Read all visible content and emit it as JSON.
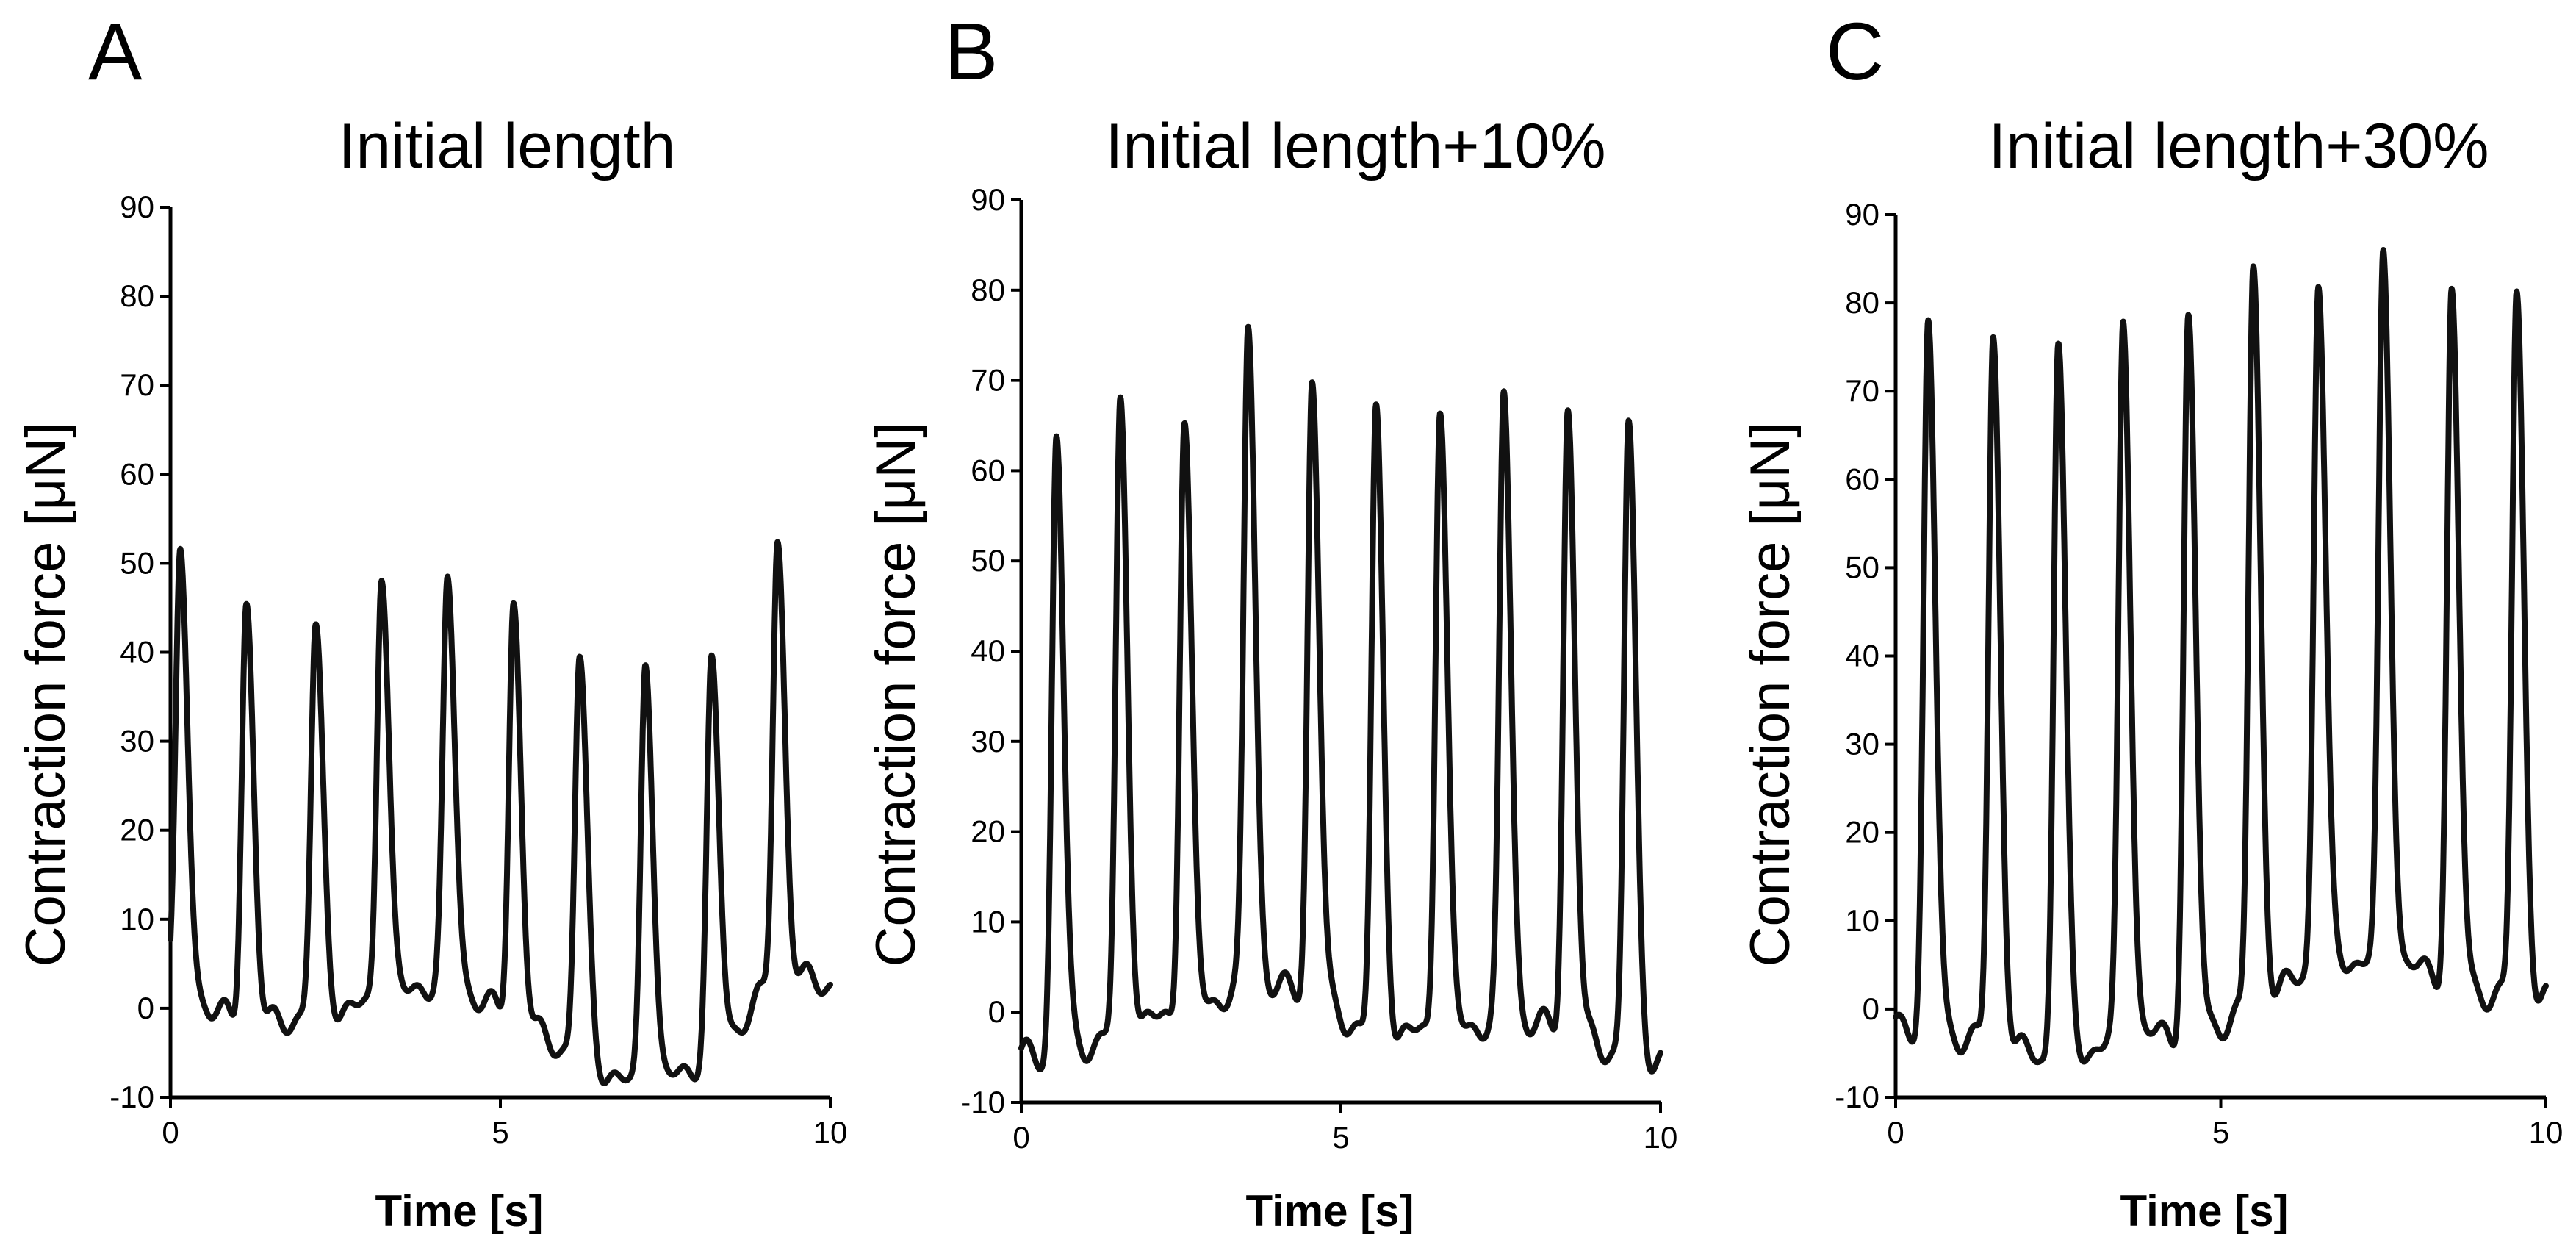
{
  "figure": {
    "panels": [
      "A",
      "B",
      "C"
    ]
  },
  "chart_data": [
    {
      "panel": "A",
      "type": "line",
      "title": "Initial length",
      "xlabel": "Time [s]",
      "ylabel": "Contraction force [μN]",
      "xlim": [
        0,
        10
      ],
      "ylim": [
        -10,
        90
      ],
      "xticks": [
        0,
        5,
        10
      ],
      "yticks": [
        -10,
        0,
        10,
        20,
        30,
        40,
        50,
        60,
        70,
        80,
        90
      ],
      "beat_times": [
        0.15,
        1.15,
        2.2,
        3.2,
        4.2,
        5.2,
        6.2,
        7.2,
        8.2,
        9.2
      ],
      "peaks": [
        50,
        46,
        42,
        50,
        47,
        46,
        39,
        40,
        38,
        53
      ],
      "baseline": [
        3,
        -3,
        0,
        0,
        4,
        -2,
        -5,
        -10,
        -5,
        3
      ],
      "series": [
        {
          "name": "Contraction force",
          "color": "#111111"
        }
      ]
    },
    {
      "panel": "B",
      "type": "line",
      "title": "Initial length+10%",
      "xlabel": "Time [s]",
      "ylabel": "Contraction force [μN]",
      "xlim": [
        0,
        10
      ],
      "ylim": [
        -10,
        90
      ],
      "xticks": [
        0,
        5,
        10
      ],
      "yticks": [
        -10,
        0,
        10,
        20,
        30,
        40,
        50,
        60,
        70,
        80,
        90
      ],
      "beat_times": [
        0.55,
        1.55,
        2.55,
        3.55,
        4.55,
        5.55,
        6.55,
        7.55,
        8.55,
        9.5
      ],
      "peaks": [
        64,
        67,
        66,
        76,
        70,
        66,
        68,
        68,
        67,
        65
      ],
      "baseline": [
        -5,
        -2,
        0,
        3,
        2,
        -3,
        -2,
        -1,
        -2,
        -5
      ],
      "series": [
        {
          "name": "Contraction force",
          "color": "#111111"
        }
      ]
    },
    {
      "panel": "C",
      "type": "line",
      "title": "Initial length+30%",
      "xlabel": "Time [s]",
      "ylabel": "Contraction force [μN]",
      "xlim": [
        0,
        10
      ],
      "ylim": [
        -10,
        90
      ],
      "xticks": [
        0,
        5,
        10
      ],
      "yticks": [
        -10,
        0,
        10,
        20,
        30,
        40,
        50,
        60,
        70,
        80,
        90
      ],
      "beat_times": [
        0.5,
        1.5,
        2.5,
        3.5,
        4.5,
        5.5,
        6.5,
        7.5,
        8.55,
        9.55
      ],
      "peaks": [
        77,
        76,
        76,
        78,
        78,
        84,
        83,
        85,
        81,
        81
      ],
      "baseline": [
        -2,
        -4,
        -6,
        -3,
        -3,
        0,
        5,
        6,
        3,
        1
      ],
      "series": [
        {
          "name": "Contraction force",
          "color": "#111111"
        }
      ]
    }
  ]
}
